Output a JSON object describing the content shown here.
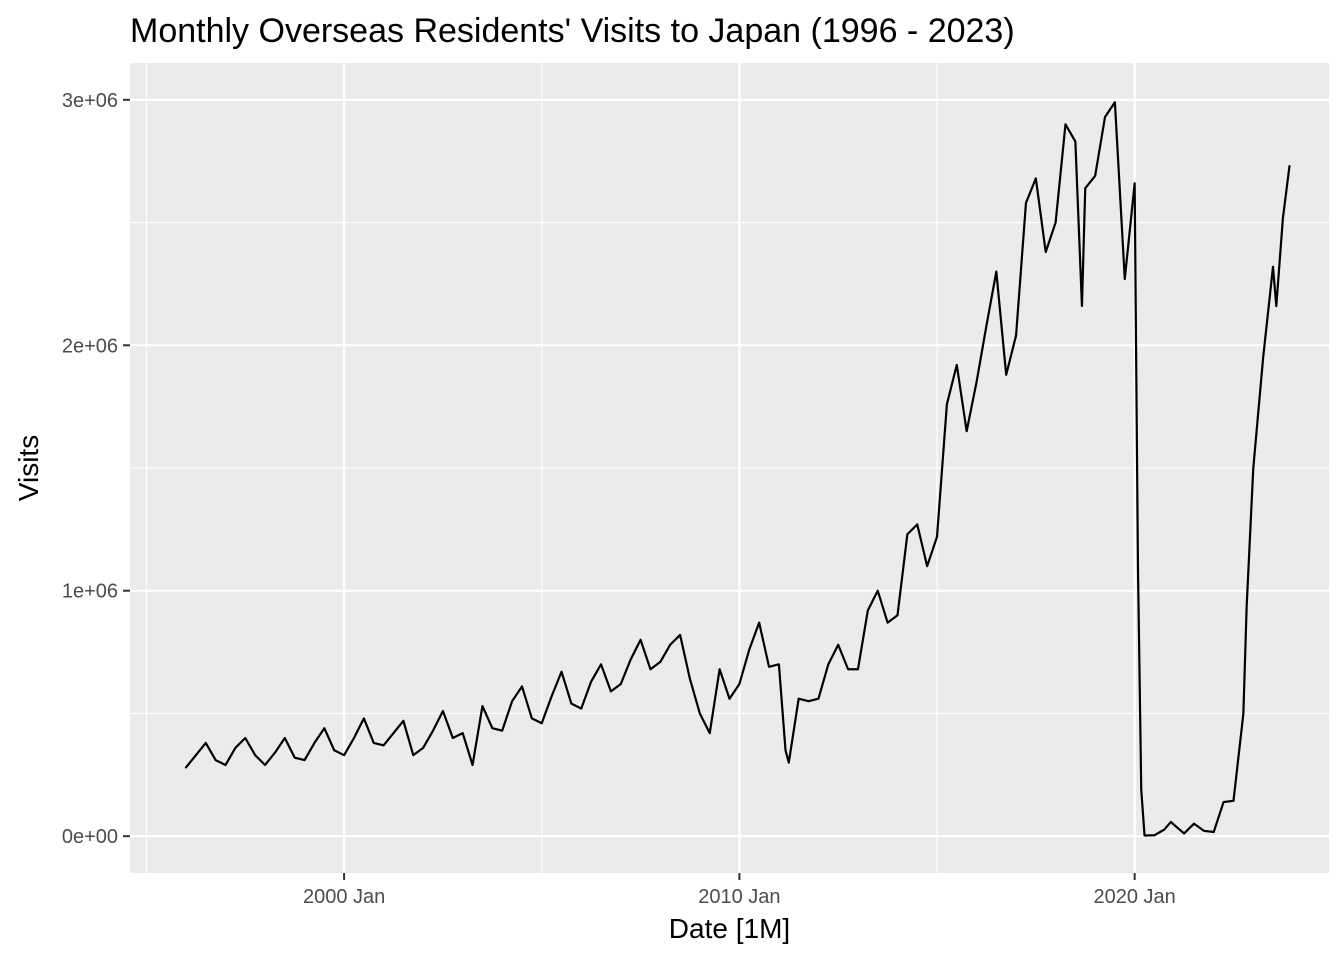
{
  "chart_data": {
    "type": "line",
    "title": "Monthly Overseas Residents' Visits to Japan (1996 - 2023)",
    "xlabel": "Date [1M]",
    "ylabel": "Visits",
    "x_ticks": [
      {
        "label": "2000 Jan",
        "x": "2000-01"
      },
      {
        "label": "2010 Jan",
        "x": "2010-01"
      },
      {
        "label": "2020 Jan",
        "x": "2020-01"
      }
    ],
    "y_ticks": [
      {
        "label": "0e+00",
        "value": 0
      },
      {
        "label": "1e+06",
        "value": 1000000
      },
      {
        "label": "2e+06",
        "value": 2000000
      },
      {
        "label": "3e+06",
        "value": 3000000
      }
    ],
    "xlim": [
      "1994-08",
      "2024-12"
    ],
    "ylim": [
      -150000,
      3150000
    ],
    "grid": true,
    "colors": {
      "panel": "#ebebeb",
      "grid": "#ffffff",
      "line": "#000000",
      "tick_text": "#4d4d4d",
      "text": "#000000"
    },
    "series": [
      {
        "points": [
          [
            "1996-01",
            280000
          ],
          [
            "1996-04",
            330000
          ],
          [
            "1996-07",
            380000
          ],
          [
            "1996-10",
            310000
          ],
          [
            "1997-01",
            290000
          ],
          [
            "1997-04",
            360000
          ],
          [
            "1997-07",
            400000
          ],
          [
            "1997-10",
            330000
          ],
          [
            "1998-01",
            290000
          ],
          [
            "1998-04",
            340000
          ],
          [
            "1998-07",
            400000
          ],
          [
            "1998-10",
            320000
          ],
          [
            "1999-01",
            310000
          ],
          [
            "1999-04",
            380000
          ],
          [
            "1999-07",
            440000
          ],
          [
            "1999-10",
            350000
          ],
          [
            "2000-01",
            330000
          ],
          [
            "2000-04",
            400000
          ],
          [
            "2000-07",
            480000
          ],
          [
            "2000-10",
            380000
          ],
          [
            "2001-01",
            370000
          ],
          [
            "2001-04",
            420000
          ],
          [
            "2001-07",
            470000
          ],
          [
            "2001-10",
            330000
          ],
          [
            "2002-01",
            360000
          ],
          [
            "2002-04",
            430000
          ],
          [
            "2002-07",
            510000
          ],
          [
            "2002-10",
            400000
          ],
          [
            "2003-01",
            420000
          ],
          [
            "2003-04",
            290000
          ],
          [
            "2003-07",
            530000
          ],
          [
            "2003-10",
            440000
          ],
          [
            "2004-01",
            430000
          ],
          [
            "2004-04",
            550000
          ],
          [
            "2004-07",
            610000
          ],
          [
            "2004-10",
            480000
          ],
          [
            "2005-01",
            460000
          ],
          [
            "2005-04",
            570000
          ],
          [
            "2005-07",
            670000
          ],
          [
            "2005-10",
            540000
          ],
          [
            "2006-01",
            520000
          ],
          [
            "2006-04",
            630000
          ],
          [
            "2006-07",
            700000
          ],
          [
            "2006-10",
            590000
          ],
          [
            "2007-01",
            620000
          ],
          [
            "2007-04",
            720000
          ],
          [
            "2007-07",
            800000
          ],
          [
            "2007-10",
            680000
          ],
          [
            "2008-01",
            710000
          ],
          [
            "2008-04",
            780000
          ],
          [
            "2008-07",
            820000
          ],
          [
            "2008-10",
            640000
          ],
          [
            "2009-01",
            500000
          ],
          [
            "2009-04",
            420000
          ],
          [
            "2009-07",
            680000
          ],
          [
            "2009-10",
            560000
          ],
          [
            "2010-01",
            620000
          ],
          [
            "2010-04",
            760000
          ],
          [
            "2010-07",
            870000
          ],
          [
            "2010-10",
            690000
          ],
          [
            "2011-01",
            700000
          ],
          [
            "2011-03",
            350000
          ],
          [
            "2011-04",
            300000
          ],
          [
            "2011-07",
            560000
          ],
          [
            "2011-10",
            550000
          ],
          [
            "2012-01",
            560000
          ],
          [
            "2012-04",
            700000
          ],
          [
            "2012-07",
            780000
          ],
          [
            "2012-10",
            680000
          ],
          [
            "2013-01",
            680000
          ],
          [
            "2013-04",
            920000
          ],
          [
            "2013-07",
            1000000
          ],
          [
            "2013-10",
            870000
          ],
          [
            "2014-01",
            900000
          ],
          [
            "2014-04",
            1230000
          ],
          [
            "2014-07",
            1270000
          ],
          [
            "2014-10",
            1100000
          ],
          [
            "2015-01",
            1220000
          ],
          [
            "2015-04",
            1760000
          ],
          [
            "2015-07",
            1920000
          ],
          [
            "2015-10",
            1650000
          ],
          [
            "2016-01",
            1850000
          ],
          [
            "2016-04",
            2080000
          ],
          [
            "2016-07",
            2300000
          ],
          [
            "2016-10",
            1880000
          ],
          [
            "2017-01",
            2040000
          ],
          [
            "2017-04",
            2580000
          ],
          [
            "2017-07",
            2680000
          ],
          [
            "2017-10",
            2380000
          ],
          [
            "2018-01",
            2500000
          ],
          [
            "2018-04",
            2900000
          ],
          [
            "2018-07",
            2830000
          ],
          [
            "2018-09",
            2160000
          ],
          [
            "2018-10",
            2640000
          ],
          [
            "2019-01",
            2690000
          ],
          [
            "2019-04",
            2930000
          ],
          [
            "2019-07",
            2990000
          ],
          [
            "2019-10",
            2270000
          ],
          [
            "2020-01",
            2660000
          ],
          [
            "2020-02",
            1100000
          ],
          [
            "2020-03",
            190000
          ],
          [
            "2020-04",
            2900
          ],
          [
            "2020-07",
            3800
          ],
          [
            "2020-10",
            27000
          ],
          [
            "2020-12",
            58000
          ],
          [
            "2021-01",
            46000
          ],
          [
            "2021-04",
            11000
          ],
          [
            "2021-07",
            51000
          ],
          [
            "2021-10",
            22000
          ],
          [
            "2022-01",
            17000
          ],
          [
            "2022-04",
            139000
          ],
          [
            "2022-07",
            144000
          ],
          [
            "2022-10",
            499000
          ],
          [
            "2022-11",
            935000
          ],
          [
            "2023-01",
            1497000
          ],
          [
            "2023-04",
            1949000
          ],
          [
            "2023-07",
            2320000
          ],
          [
            "2023-08",
            2160000
          ],
          [
            "2023-10",
            2517000
          ],
          [
            "2023-12",
            2730000
          ]
        ]
      }
    ]
  }
}
